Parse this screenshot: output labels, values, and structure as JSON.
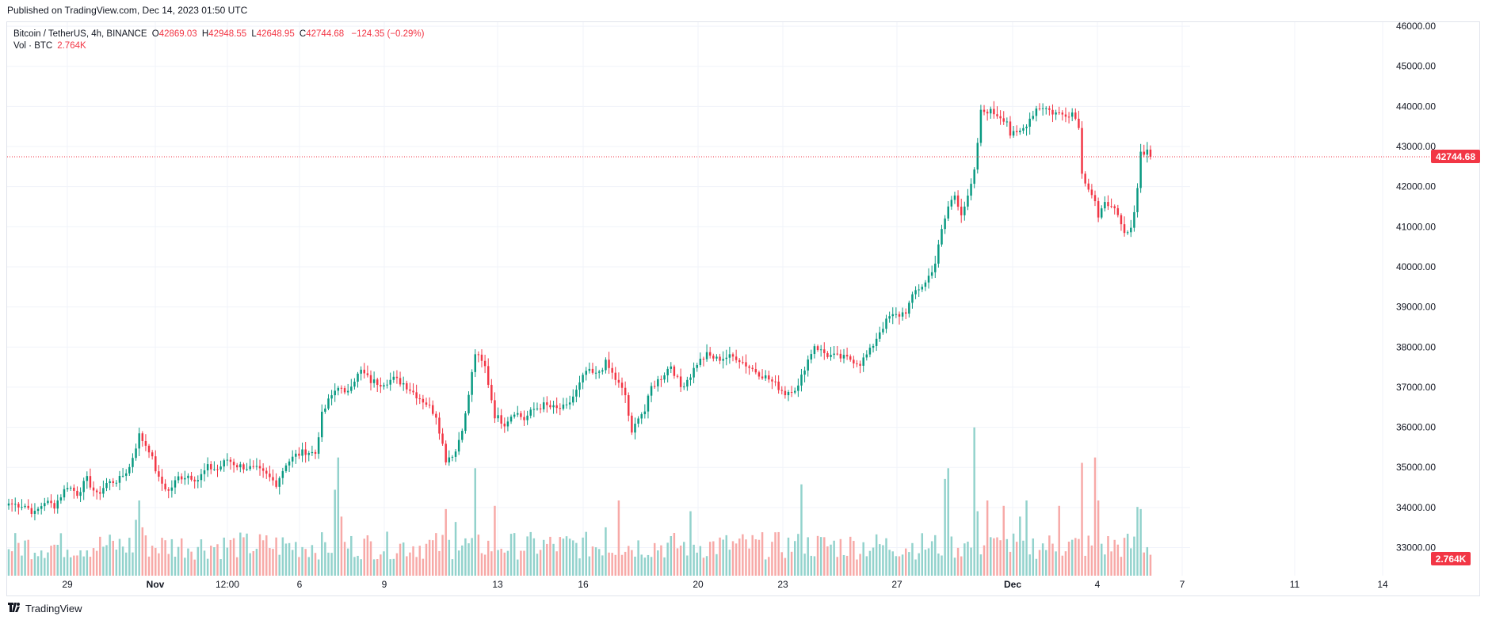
{
  "header": {
    "published": "Published on TradingView.com, Dec 14, 2023 01:50 UTC"
  },
  "legend": {
    "symbol": "Bitcoin / TetherUS, 4h, BINANCE",
    "o_label": "O",
    "o_value": "42869.03",
    "h_label": "H",
    "h_value": "42948.55",
    "l_label": "L",
    "l_value": "42648.95",
    "c_label": "C",
    "c_value": "42744.68",
    "change": "−124.35 (−0.29%)",
    "vol_label": "Vol · BTC",
    "vol_value": "2.764K"
  },
  "footer": {
    "brand": "TradingView",
    "logo_icon": "tradingview-logo-icon"
  },
  "colors": {
    "up": "#089981",
    "down": "#f23645",
    "up_vol": "#92d2cc",
    "down_vol": "#f7a9a7",
    "grid": "#f0f3fa",
    "last_price": "#f23645"
  },
  "chart_data": {
    "type": "candlestick",
    "interval": "4h",
    "x_tick_labels": [
      "29",
      "Nov",
      "12:00",
      "6",
      "9",
      "13",
      "16",
      "20",
      "23",
      "27",
      "Dec",
      "4",
      "7",
      "11",
      "14"
    ],
    "y_tick_labels": [
      "33000.00",
      "34000.00",
      "35000.00",
      "36000.00",
      "37000.00",
      "38000.00",
      "39000.00",
      "40000.00",
      "41000.00",
      "42000.00",
      "43000.00",
      "44000.00",
      "45000.00",
      "46000.00"
    ],
    "ylim": [
      32300,
      46100
    ],
    "grid": true,
    "last_price": 42744.68,
    "last_price_label": "42744.68",
    "last_volume_label": "2.764K",
    "anchor_closes": [
      [
        0,
        34100
      ],
      [
        5,
        34050
      ],
      [
        8,
        33850
      ],
      [
        11,
        34150
      ],
      [
        14,
        34050
      ],
      [
        18,
        34550
      ],
      [
        21,
        34350
      ],
      [
        24,
        34700
      ],
      [
        27,
        34300
      ],
      [
        30,
        34600
      ],
      [
        34,
        34700
      ],
      [
        37,
        35000
      ],
      [
        40,
        35800
      ],
      [
        43,
        35450
      ],
      [
        46,
        34700
      ],
      [
        49,
        34400
      ],
      [
        52,
        34750
      ],
      [
        55,
        34800
      ],
      [
        58,
        34700
      ],
      [
        61,
        35000
      ],
      [
        64,
        34950
      ],
      [
        67,
        35200
      ],
      [
        70,
        35050
      ],
      [
        73,
        35000
      ],
      [
        76,
        34950
      ],
      [
        79,
        34800
      ],
      [
        82,
        34600
      ],
      [
        85,
        35100
      ],
      [
        88,
        35300
      ],
      [
        91,
        35400
      ],
      [
        94,
        35350
      ],
      [
        96,
        36300
      ],
      [
        98,
        36650
      ],
      [
        101,
        37050
      ],
      [
        103,
        36800
      ],
      [
        105,
        37100
      ],
      [
        108,
        37400
      ],
      [
        111,
        37150
      ],
      [
        114,
        37100
      ],
      [
        118,
        37200
      ],
      [
        121,
        37100
      ],
      [
        125,
        36800
      ],
      [
        128,
        36600
      ],
      [
        131,
        36300
      ],
      [
        134,
        35200
      ],
      [
        137,
        35400
      ],
      [
        140,
        36300
      ],
      [
        143,
        37850
      ],
      [
        146,
        37500
      ],
      [
        149,
        36300
      ],
      [
        152,
        36100
      ],
      [
        155,
        36400
      ],
      [
        158,
        36200
      ],
      [
        161,
        36450
      ],
      [
        164,
        36550
      ],
      [
        168,
        36450
      ],
      [
        171,
        36500
      ],
      [
        174,
        36900
      ],
      [
        177,
        37400
      ],
      [
        180,
        37300
      ],
      [
        183,
        37600
      ],
      [
        186,
        37200
      ],
      [
        189,
        36800
      ],
      [
        191,
        35800
      ],
      [
        193,
        36300
      ],
      [
        195,
        36400
      ],
      [
        197,
        37000
      ],
      [
        200,
        37250
      ],
      [
        203,
        37550
      ],
      [
        206,
        37000
      ],
      [
        209,
        37300
      ],
      [
        211,
        37600
      ],
      [
        214,
        37800
      ],
      [
        217,
        37700
      ],
      [
        220,
        37750
      ],
      [
        223,
        37750
      ],
      [
        227,
        37500
      ],
      [
        230,
        37350
      ],
      [
        233,
        37200
      ],
      [
        236,
        37000
      ],
      [
        238,
        36850
      ],
      [
        240,
        36950
      ],
      [
        242,
        37000
      ],
      [
        244,
        37500
      ],
      [
        247,
        38050
      ],
      [
        249,
        37900
      ],
      [
        251,
        37800
      ],
      [
        254,
        37750
      ],
      [
        258,
        37700
      ],
      [
        261,
        37600
      ],
      [
        264,
        37900
      ],
      [
        267,
        38400
      ],
      [
        270,
        38750
      ],
      [
        273,
        38800
      ],
      [
        275,
        38900
      ],
      [
        278,
        39400
      ],
      [
        281,
        39600
      ],
      [
        284,
        40100
      ],
      [
        286,
        40900
      ],
      [
        288,
        41500
      ],
      [
        290,
        41800
      ],
      [
        292,
        41350
      ],
      [
        294,
        41700
      ],
      [
        296,
        42350
      ],
      [
        297,
        43100
      ],
      [
        298,
        43850
      ],
      [
        300,
        43900
      ],
      [
        303,
        43800
      ],
      [
        306,
        43650
      ],
      [
        307,
        43300
      ],
      [
        309,
        43300
      ],
      [
        311,
        43450
      ],
      [
        313,
        43700
      ],
      [
        315,
        43950
      ],
      [
        317,
        44000
      ],
      [
        320,
        43850
      ],
      [
        323,
        43800
      ],
      [
        326,
        43850
      ],
      [
        328,
        43550
      ],
      [
        329,
        42300
      ],
      [
        331,
        42000
      ],
      [
        333,
        41650
      ],
      [
        334,
        41200
      ],
      [
        336,
        41550
      ],
      [
        338,
        41600
      ],
      [
        340,
        41200
      ],
      [
        342,
        40800
      ],
      [
        344,
        40900
      ],
      [
        346,
        42000
      ],
      [
        347,
        42850
      ],
      [
        349,
        42900
      ],
      [
        350,
        42744.68
      ]
    ],
    "volume_profile": {
      "baseline": 150,
      "spikes": [
        [
          39,
          520
        ],
        [
          40,
          700
        ],
        [
          41,
          450
        ],
        [
          100,
          800
        ],
        [
          101,
          1100
        ],
        [
          102,
          550
        ],
        [
          134,
          620
        ],
        [
          137,
          500
        ],
        [
          143,
          1000
        ],
        [
          149,
          650
        ],
        [
          183,
          450
        ],
        [
          187,
          700
        ],
        [
          209,
          600
        ],
        [
          243,
          850
        ],
        [
          287,
          900
        ],
        [
          288,
          1000
        ],
        [
          296,
          1380
        ],
        [
          297,
          600
        ],
        [
          300,
          700
        ],
        [
          305,
          650
        ],
        [
          310,
          550
        ],
        [
          312,
          700
        ],
        [
          322,
          650
        ],
        [
          329,
          1050
        ],
        [
          333,
          1100
        ],
        [
          334,
          700
        ],
        [
          346,
          640
        ],
        [
          347,
          620
        ]
      ]
    }
  }
}
